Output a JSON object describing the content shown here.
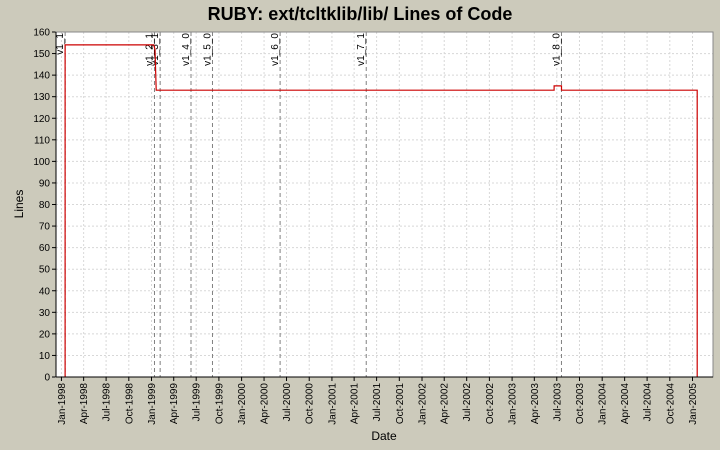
{
  "chart_data": {
    "type": "line",
    "title": "RUBY: ext/tcltklib/lib/ Lines of Code",
    "xlabel": "Date",
    "ylabel": "Lines",
    "ylim": [
      0,
      160
    ],
    "yticks": [
      0,
      10,
      20,
      30,
      40,
      50,
      60,
      70,
      80,
      90,
      100,
      110,
      120,
      130,
      140,
      150,
      160
    ],
    "xlim": [
      "1997-12-10",
      "2005-03-25"
    ],
    "xticks": [
      {
        "date": "1998-01-01",
        "label": "Jan-1998"
      },
      {
        "date": "1998-04-01",
        "label": "Apr-1998"
      },
      {
        "date": "1998-07-01",
        "label": "Jul-1998"
      },
      {
        "date": "1998-10-01",
        "label": "Oct-1998"
      },
      {
        "date": "1999-01-01",
        "label": "Jan-1999"
      },
      {
        "date": "1999-04-01",
        "label": "Apr-1999"
      },
      {
        "date": "1999-07-01",
        "label": "Jul-1999"
      },
      {
        "date": "1999-10-01",
        "label": "Oct-1999"
      },
      {
        "date": "2000-01-01",
        "label": "Jan-2000"
      },
      {
        "date": "2000-04-01",
        "label": "Apr-2000"
      },
      {
        "date": "2000-07-01",
        "label": "Jul-2000"
      },
      {
        "date": "2000-10-01",
        "label": "Oct-2000"
      },
      {
        "date": "2001-01-01",
        "label": "Jan-2001"
      },
      {
        "date": "2001-04-01",
        "label": "Apr-2001"
      },
      {
        "date": "2001-07-01",
        "label": "Jul-2001"
      },
      {
        "date": "2001-10-01",
        "label": "Oct-2001"
      },
      {
        "date": "2002-01-01",
        "label": "Jan-2002"
      },
      {
        "date": "2002-04-01",
        "label": "Apr-2002"
      },
      {
        "date": "2002-07-01",
        "label": "Jul-2002"
      },
      {
        "date": "2002-10-01",
        "label": "Oct-2002"
      },
      {
        "date": "2003-01-01",
        "label": "Jan-2003"
      },
      {
        "date": "2003-04-01",
        "label": "Apr-2003"
      },
      {
        "date": "2003-07-01",
        "label": "Jul-2003"
      },
      {
        "date": "2003-10-01",
        "label": "Oct-2003"
      },
      {
        "date": "2004-01-01",
        "label": "Jan-2004"
      },
      {
        "date": "2004-04-01",
        "label": "Apr-2004"
      },
      {
        "date": "2004-07-01",
        "label": "Jul-2004"
      },
      {
        "date": "2004-10-01",
        "label": "Oct-2004"
      },
      {
        "date": "2005-01-01",
        "label": "Jan-2005"
      }
    ],
    "grid": true,
    "series": [
      {
        "color": "#cc0000",
        "step": true,
        "points": [
          {
            "x": "1998-01-16",
            "y": 0
          },
          {
            "x": "1998-01-16",
            "y": 154
          },
          {
            "x": "1999-01-10",
            "y": 154
          },
          {
            "x": "1999-01-15",
            "y": 152
          },
          {
            "x": "1999-01-20",
            "y": 133
          },
          {
            "x": "2003-06-20",
            "y": 133
          },
          {
            "x": "2003-06-20",
            "y": 135
          },
          {
            "x": "2003-07-20",
            "y": 135
          },
          {
            "x": "2003-07-20",
            "y": 133
          },
          {
            "x": "2005-01-20",
            "y": 133
          },
          {
            "x": "2005-01-20",
            "y": 0
          }
        ]
      }
    ],
    "annotations": [
      {
        "date": "1998-01-16",
        "label": "v1_1"
      },
      {
        "date": "1999-01-13",
        "label": "v1_2_1"
      },
      {
        "date": "1999-02-05",
        "label": "v1_3_1"
      },
      {
        "date": "1999-06-10",
        "label": "v1_4_0"
      },
      {
        "date": "1999-09-05",
        "label": "v1_5_0"
      },
      {
        "date": "2000-06-05",
        "label": "v1_6_0"
      },
      {
        "date": "2001-05-20",
        "label": "v1_7_1"
      },
      {
        "date": "2003-07-20",
        "label": "v1_8_0"
      }
    ],
    "colors": {
      "background": "#cccabb",
      "plot": "#ffffff",
      "line": "#cc0000",
      "grid": "#d8d8d8",
      "marker": "#808080"
    }
  }
}
